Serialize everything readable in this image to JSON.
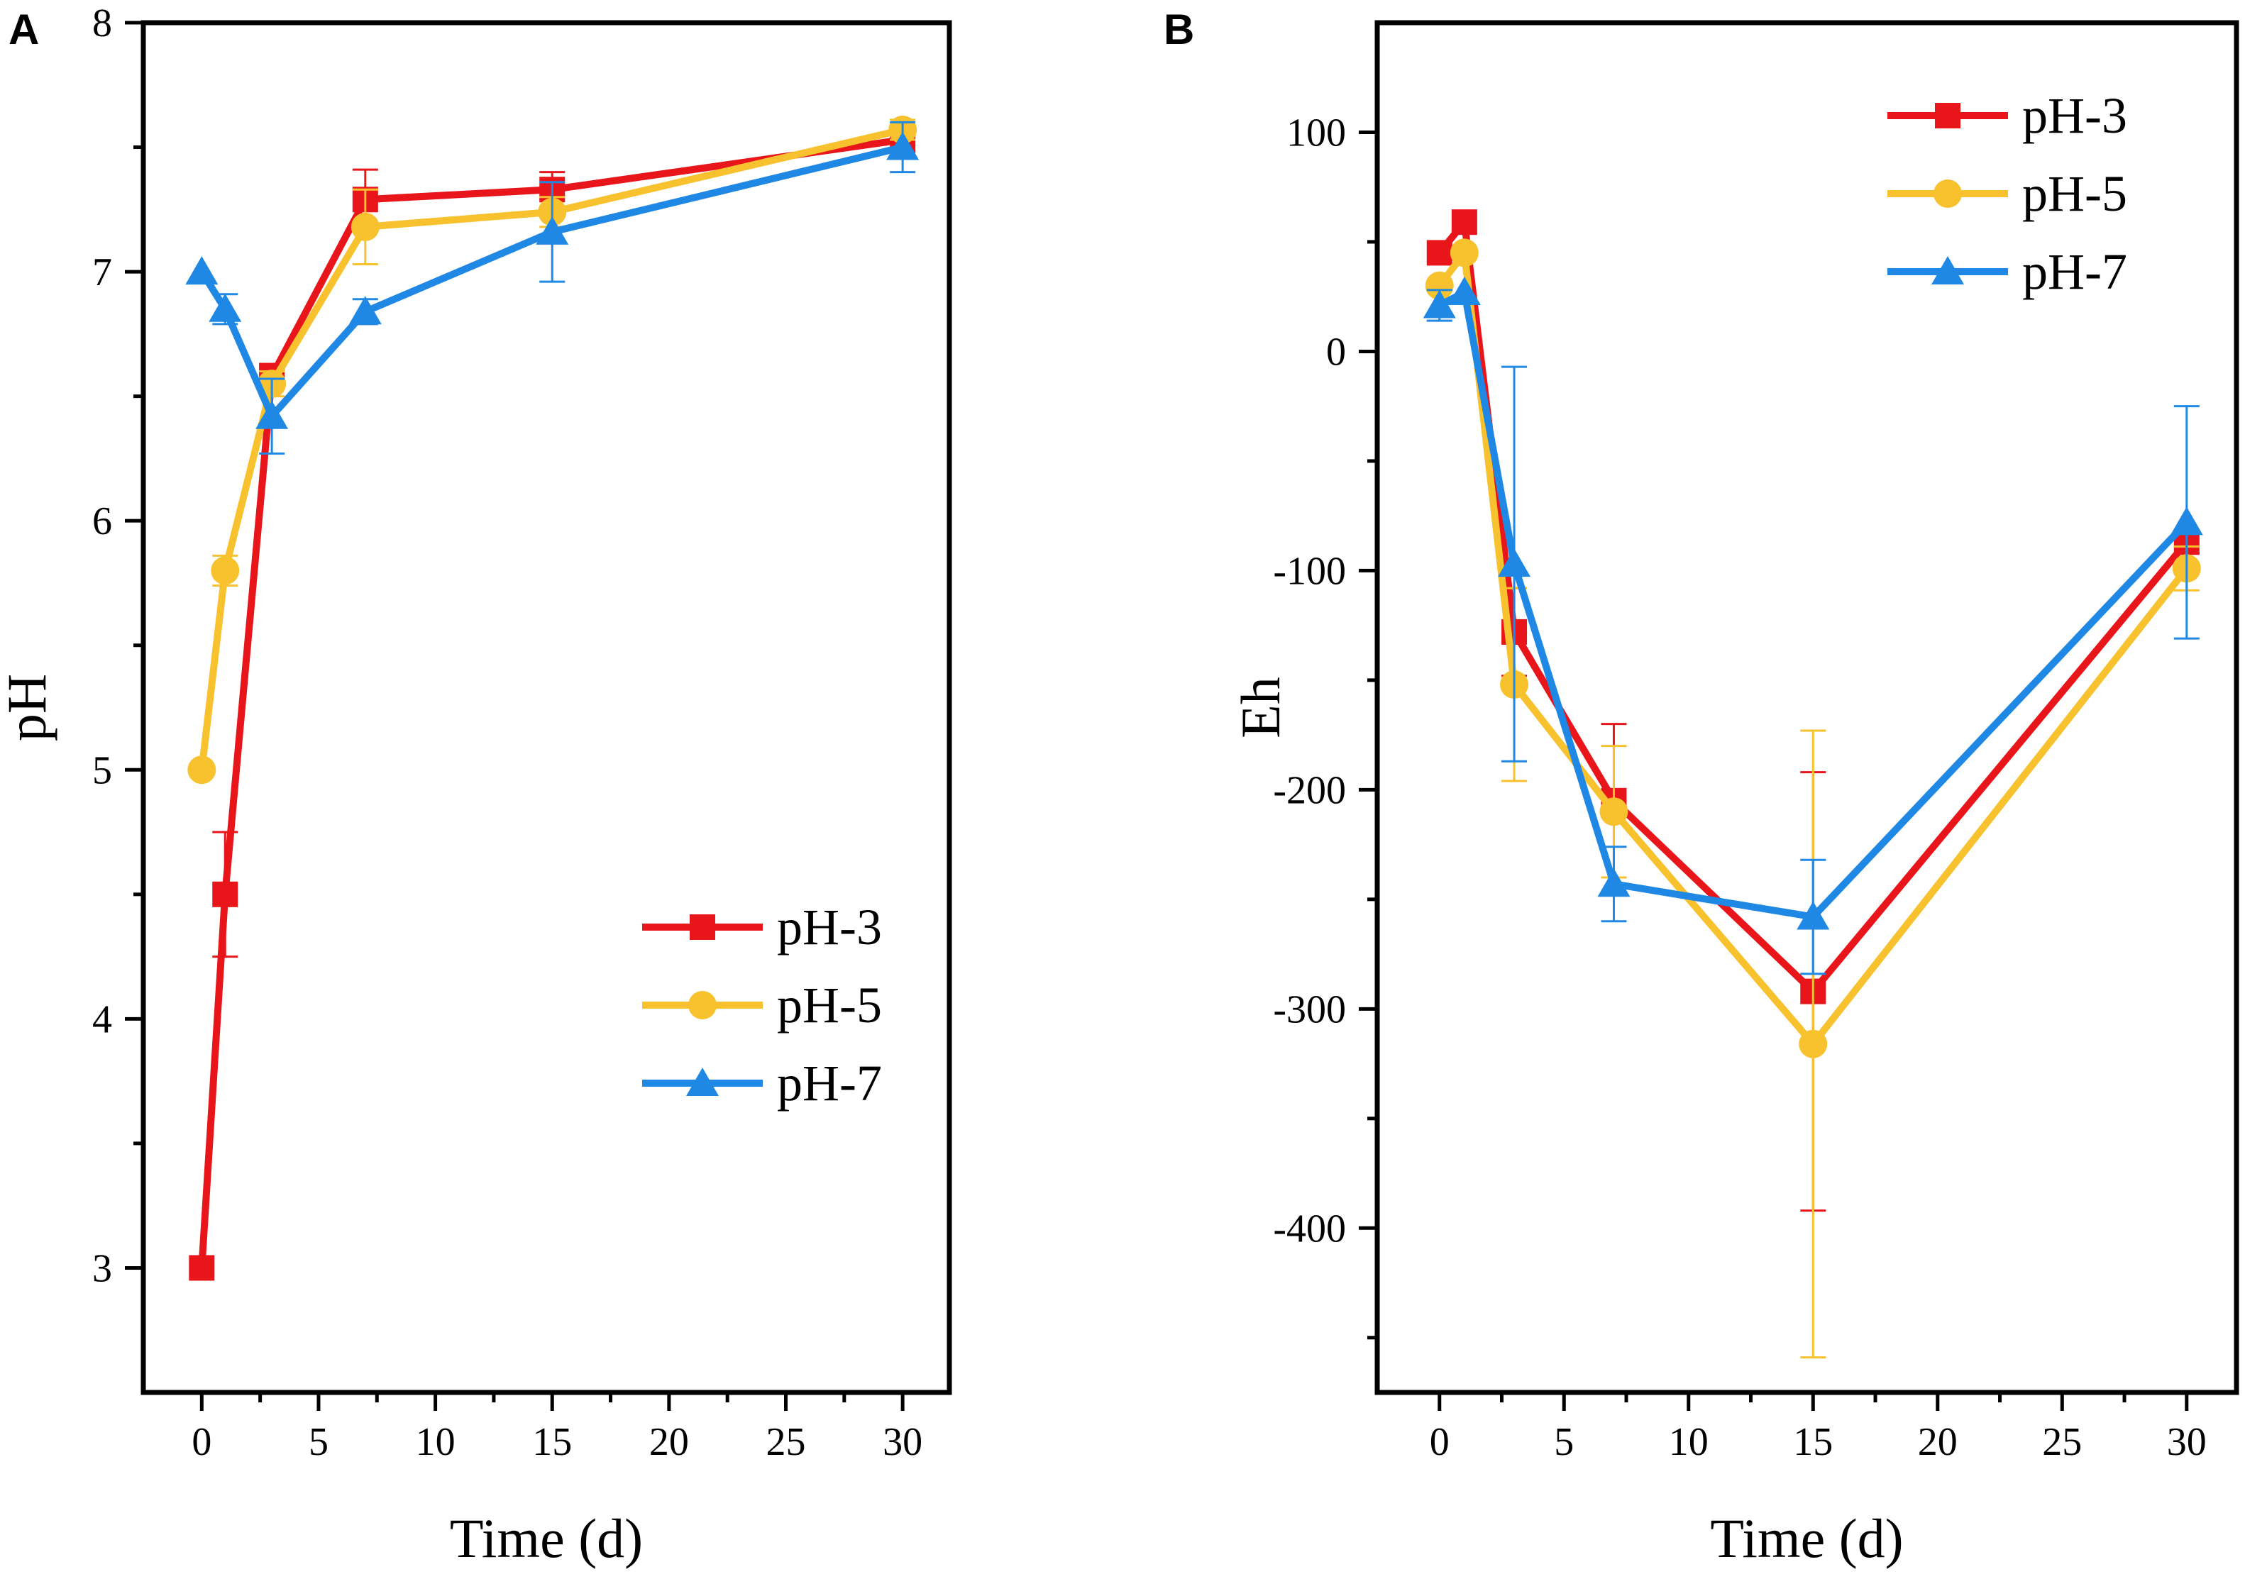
{
  "chart_data": [
    {
      "panel_label": "A",
      "type": "line",
      "xlabel": "Time (d)",
      "ylabel": "pH",
      "xlim": [
        -2.5,
        32
      ],
      "ylim": [
        2.5,
        8
      ],
      "xticks": [
        0,
        5,
        10,
        15,
        20,
        25,
        30
      ],
      "yticks": [
        3,
        4,
        5,
        6,
        7,
        8
      ],
      "legend_position": "bottom-right",
      "x": [
        0,
        1,
        3,
        7,
        15,
        30
      ],
      "series": [
        {
          "name": "pH-3",
          "color": "#e8151b",
          "marker": "square",
          "values": [
            3.0,
            4.5,
            6.58,
            7.29,
            7.33,
            7.53
          ],
          "errors": [
            0,
            0.25,
            0.05,
            0.12,
            0.07,
            0.05
          ]
        },
        {
          "name": "pH-5",
          "color": "#f7c22e",
          "marker": "circle",
          "values": [
            5.0,
            5.8,
            6.55,
            7.18,
            7.24,
            7.57
          ],
          "errors": [
            0,
            0.06,
            0.05,
            0.15,
            0.06,
            0.04
          ]
        },
        {
          "name": "pH-7",
          "color": "#1f88e5",
          "marker": "triangle",
          "values": [
            7.0,
            6.85,
            6.42,
            6.84,
            7.16,
            7.5
          ],
          "errors": [
            0,
            0.06,
            0.15,
            0.05,
            0.2,
            0.1
          ]
        }
      ]
    },
    {
      "panel_label": "B",
      "type": "line",
      "xlabel": "Time (d)",
      "ylabel": "Eh",
      "xlim": [
        -2.5,
        32
      ],
      "ylim": [
        -475,
        150
      ],
      "xticks": [
        0,
        5,
        10,
        15,
        20,
        25,
        30
      ],
      "yticks": [
        -400,
        -300,
        -200,
        -100,
        0,
        100
      ],
      "legend_position": "top-right",
      "x": [
        0,
        1,
        3,
        7,
        15,
        30
      ],
      "series": [
        {
          "name": "pH-3",
          "color": "#e8151b",
          "marker": "square",
          "values": [
            45,
            59,
            -128,
            -205,
            -292,
            -87
          ],
          "errors": [
            0,
            0,
            20,
            35,
            100,
            5
          ]
        },
        {
          "name": "pH-5",
          "color": "#f7c22e",
          "marker": "circle",
          "values": [
            30,
            45,
            -152,
            -210,
            -316,
            -99
          ],
          "errors": [
            0,
            0,
            44,
            30,
            143,
            10
          ]
        },
        {
          "name": "pH-7",
          "color": "#1f88e5",
          "marker": "triangle",
          "values": [
            21,
            27,
            -97,
            -243,
            -258,
            -78
          ],
          "errors": [
            7,
            0,
            90,
            17,
            26,
            53
          ]
        }
      ]
    }
  ]
}
